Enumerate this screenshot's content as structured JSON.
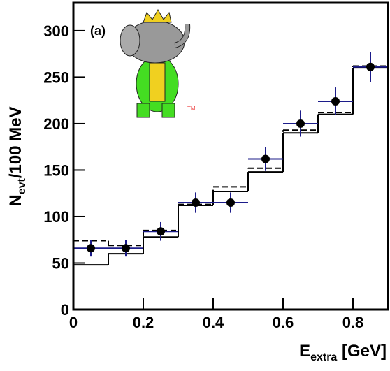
{
  "chart_data": {
    "type": "histogram",
    "ylabel": [
      "N",
      "evt",
      "/100 MeV"
    ],
    "xlabel": [
      "E",
      "extra",
      " [GeV]"
    ],
    "annotations": [
      "(a)",
      "TM"
    ],
    "bins": [
      0,
      0.1,
      0.2,
      0.3,
      0.4,
      0.5,
      0.6,
      0.7,
      0.8,
      0.9
    ],
    "histograms": [
      {
        "style": "solid",
        "color": "#000000",
        "values": [
          48,
          60,
          78,
          112,
          127,
          148,
          190,
          210,
          260
        ]
      },
      {
        "style": "dashed",
        "color": "#000000",
        "values": [
          74,
          69,
          85,
          113,
          132,
          152,
          193,
          212,
          262
        ]
      }
    ],
    "points": {
      "color": "#1c1c8a",
      "x": [
        0.05,
        0.15,
        0.25,
        0.35,
        0.45,
        0.55,
        0.65,
        0.75,
        0.85
      ],
      "values": [
        66,
        66,
        84,
        115,
        115,
        162,
        200,
        224,
        261
      ],
      "errors": [
        9,
        9,
        10,
        11,
        11,
        13,
        14,
        15,
        16
      ]
    },
    "xlim": [
      0,
      0.9
    ],
    "ylim": [
      0,
      330
    ],
    "xticks": [
      0,
      0.2,
      0.4,
      0.6,
      0.8
    ],
    "yticks": [
      0,
      50,
      100,
      150,
      200,
      250,
      300
    ],
    "grid": false
  }
}
